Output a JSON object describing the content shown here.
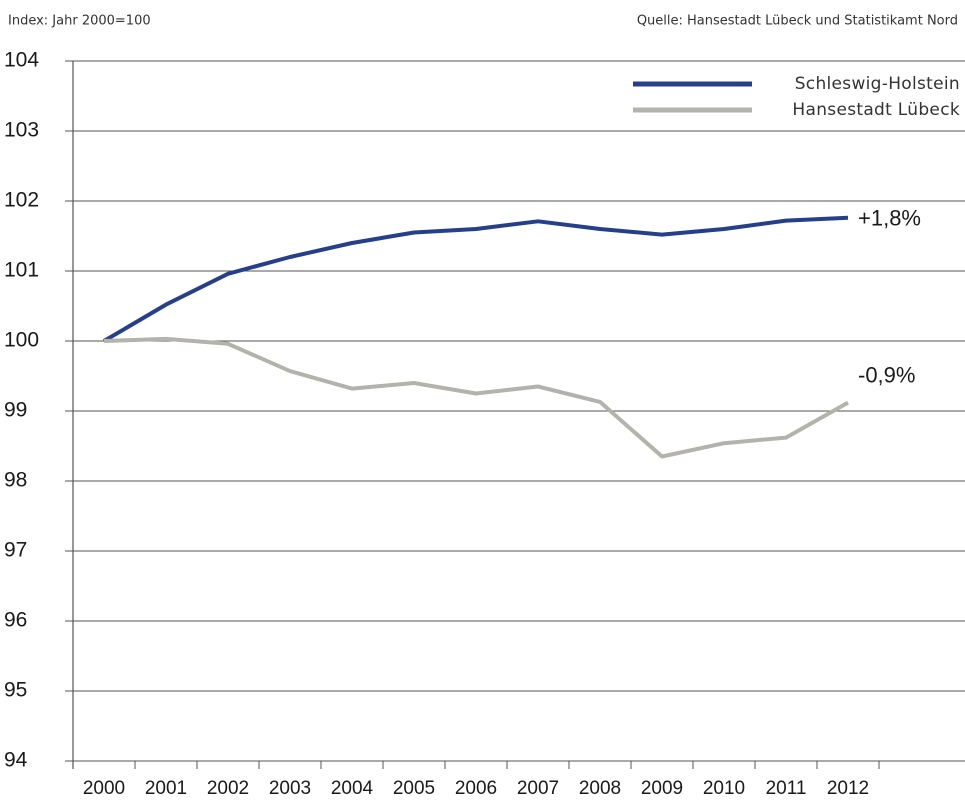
{
  "chart_data": {
    "type": "line",
    "subtitle": "Index: Jahr 2000=100",
    "source": "Quelle: Hansestadt Lübeck und Statistikamt Nord",
    "categories": [
      "2000",
      "2001",
      "2002",
      "2003",
      "2004",
      "2005",
      "2006",
      "2007",
      "2008",
      "2009",
      "2010",
      "2011",
      "2012"
    ],
    "series": [
      {
        "name": "Schleswig-Holstein",
        "color": "#263f8a",
        "values": [
          100,
          100.52,
          100.96,
          101.2,
          101.4,
          101.55,
          101.6,
          101.71,
          101.6,
          101.52,
          101.6,
          101.72,
          101.76
        ]
      },
      {
        "name": "Hansestadt Lübeck",
        "color": "#b3b3ab",
        "values": [
          100,
          100.03,
          99.96,
          99.57,
          99.32,
          99.4,
          99.25,
          99.35,
          99.13,
          98.35,
          98.54,
          98.62,
          99.12
        ]
      }
    ],
    "annotations": [
      "+1,8%",
      "-0,9%"
    ],
    "ylim": [
      94,
      104
    ],
    "yticks": [
      94,
      95,
      96,
      97,
      98,
      99,
      100,
      101,
      102,
      103,
      104
    ],
    "grid": true,
    "legend": "upper right"
  }
}
